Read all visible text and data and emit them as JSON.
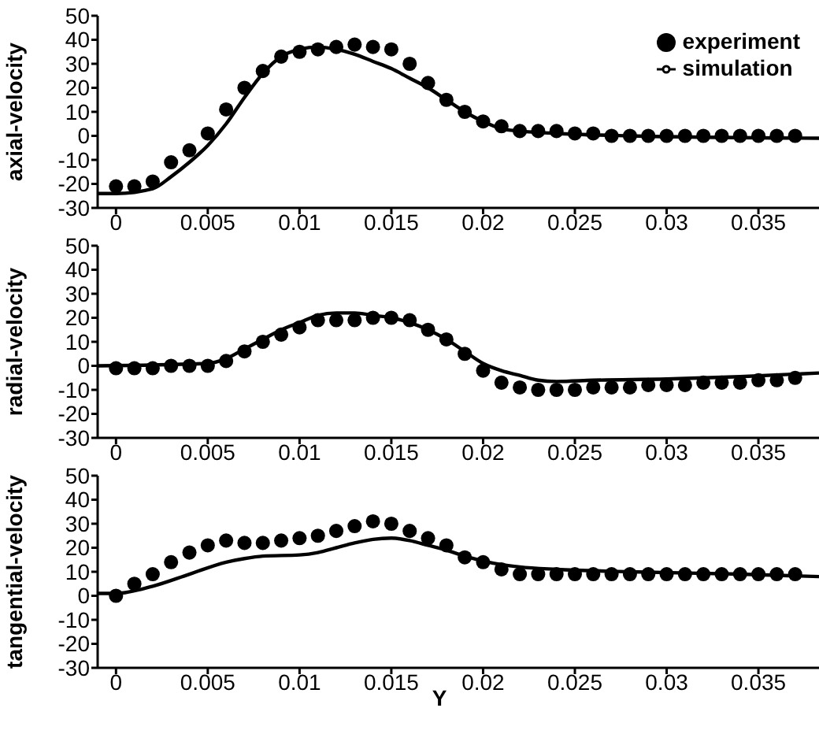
{
  "chart_data": [
    {
      "type": "line",
      "ylabel": "axial-velocity",
      "xlim": [
        -0.001,
        0.0383
      ],
      "xticks": [
        0,
        0.005,
        0.01,
        0.015,
        0.02,
        0.025,
        0.03,
        0.035
      ],
      "ylim": [
        -30,
        50
      ],
      "yticks": [
        -30,
        -20,
        -10,
        0,
        10,
        20,
        30,
        40,
        50
      ],
      "legend": "top right",
      "series": [
        {
          "name": "experiment",
          "type": "scatter",
          "marker": "circle",
          "color": "#000000",
          "x": [
            0,
            0.001,
            0.002,
            0.003,
            0.004,
            0.005,
            0.006,
            0.007,
            0.008,
            0.009,
            0.01,
            0.011,
            0.012,
            0.013,
            0.014,
            0.015,
            0.016,
            0.017,
            0.018,
            0.019,
            0.02,
            0.021,
            0.022,
            0.023,
            0.024,
            0.025,
            0.026,
            0.027,
            0.028,
            0.029,
            0.03,
            0.031,
            0.032,
            0.033,
            0.034,
            0.035,
            0.036,
            0.037
          ],
          "values": [
            -21,
            -21,
            -19,
            -11,
            -6,
            1,
            11,
            20,
            27,
            33,
            35,
            36,
            37,
            38,
            37,
            36,
            30,
            22,
            15,
            10,
            6,
            4,
            2,
            2,
            2,
            1,
            1,
            0,
            0,
            0,
            0,
            0,
            0,
            0,
            0,
            0,
            0,
            0
          ]
        },
        {
          "name": "simulation",
          "type": "line",
          "color": "#000000",
          "x": [
            -0.001,
            0,
            0.002,
            0.003,
            0.004,
            0.005,
            0.006,
            0.007,
            0.008,
            0.009,
            0.01,
            0.011,
            0.012,
            0.013,
            0.014,
            0.015,
            0.016,
            0.017,
            0.018,
            0.019,
            0.02,
            0.021,
            0.022,
            0.024,
            0.028,
            0.0383
          ],
          "values": [
            -24,
            -24,
            -22,
            -17,
            -11,
            -4,
            5,
            16,
            26,
            33,
            36,
            37,
            36,
            34,
            31,
            28,
            24,
            20,
            15,
            10,
            6,
            3,
            2,
            1,
            0,
            -1
          ]
        }
      ]
    },
    {
      "type": "line",
      "ylabel": "radial-velocity",
      "xlim": [
        -0.001,
        0.0383
      ],
      "xticks": [
        0,
        0.005,
        0.01,
        0.015,
        0.02,
        0.025,
        0.03,
        0.035
      ],
      "ylim": [
        -30,
        50
      ],
      "yticks": [
        -30,
        -20,
        -10,
        0,
        10,
        20,
        30,
        40,
        50
      ],
      "series": [
        {
          "type": "scatter",
          "marker": "circle",
          "color": "#000000",
          "x": [
            0,
            0.001,
            0.002,
            0.003,
            0.004,
            0.005,
            0.006,
            0.007,
            0.008,
            0.009,
            0.01,
            0.011,
            0.012,
            0.013,
            0.014,
            0.015,
            0.016,
            0.017,
            0.018,
            0.019,
            0.02,
            0.021,
            0.022,
            0.023,
            0.024,
            0.025,
            0.026,
            0.027,
            0.028,
            0.029,
            0.03,
            0.031,
            0.032,
            0.033,
            0.034,
            0.035,
            0.036,
            0.037
          ],
          "values": [
            -1,
            -1,
            -1,
            0,
            0,
            0,
            2,
            6,
            10,
            13,
            16,
            19,
            19,
            19,
            20,
            20,
            19,
            15,
            11,
            5,
            -2,
            -7,
            -9,
            -10,
            -10,
            -10,
            -9,
            -9,
            -9,
            -8,
            -8,
            -8,
            -7,
            -7,
            -7,
            -6,
            -6,
            -5
          ]
        },
        {
          "type": "line",
          "color": "#000000",
          "x": [
            -0.001,
            0.005,
            0.006,
            0.007,
            0.008,
            0.009,
            0.01,
            0.011,
            0.012,
            0.013,
            0.014,
            0.015,
            0.016,
            0.017,
            0.018,
            0.019,
            0.02,
            0.021,
            0.022,
            0.023,
            0.024,
            0.026,
            0.03,
            0.034,
            0.0383
          ],
          "values": [
            0,
            1,
            3,
            7,
            11,
            15,
            18,
            21,
            22,
            22,
            21,
            20,
            18,
            15,
            11,
            6,
            1,
            -2,
            -4,
            -6,
            -6.5,
            -6,
            -5.5,
            -4.5,
            -3
          ]
        }
      ]
    },
    {
      "type": "line",
      "ylabel": "tangential-velocity",
      "xlabel": "Y",
      "xlim": [
        -0.001,
        0.0383
      ],
      "xticks": [
        0,
        0.005,
        0.01,
        0.015,
        0.02,
        0.025,
        0.03,
        0.035
      ],
      "ylim": [
        -30,
        50
      ],
      "yticks": [
        -30,
        -20,
        -10,
        0,
        10,
        20,
        30,
        40,
        50
      ],
      "series": [
        {
          "type": "scatter",
          "marker": "circle",
          "color": "#000000",
          "x": [
            0,
            0.001,
            0.002,
            0.003,
            0.004,
            0.005,
            0.006,
            0.007,
            0.008,
            0.009,
            0.01,
            0.011,
            0.012,
            0.013,
            0.014,
            0.015,
            0.016,
            0.017,
            0.018,
            0.019,
            0.02,
            0.021,
            0.022,
            0.023,
            0.024,
            0.025,
            0.026,
            0.027,
            0.028,
            0.029,
            0.03,
            0.031,
            0.032,
            0.033,
            0.034,
            0.035,
            0.036,
            0.037
          ],
          "values": [
            0,
            5,
            9,
            14,
            18,
            21,
            23,
            22,
            22,
            23,
            24,
            25,
            27,
            29,
            31,
            30,
            27,
            24,
            21,
            16,
            14,
            11,
            9,
            9,
            9,
            9,
            9,
            9,
            9,
            9,
            9,
            9,
            9,
            9,
            9,
            9,
            9,
            9
          ]
        },
        {
          "type": "line",
          "color": "#000000",
          "x": [
            -0.001,
            0,
            0.002,
            0.004,
            0.006,
            0.007,
            0.008,
            0.01,
            0.011,
            0.012,
            0.013,
            0.014,
            0.015,
            0.016,
            0.017,
            0.018,
            0.019,
            0.02,
            0.021,
            0.022,
            0.024,
            0.028,
            0.034,
            0.0383
          ],
          "values": [
            1,
            1,
            4,
            9,
            14,
            15.5,
            16.5,
            17,
            18,
            20,
            22,
            23.5,
            24,
            23,
            21,
            19,
            16.5,
            14.5,
            13,
            12,
            11,
            10,
            9,
            8
          ]
        }
      ]
    }
  ]
}
